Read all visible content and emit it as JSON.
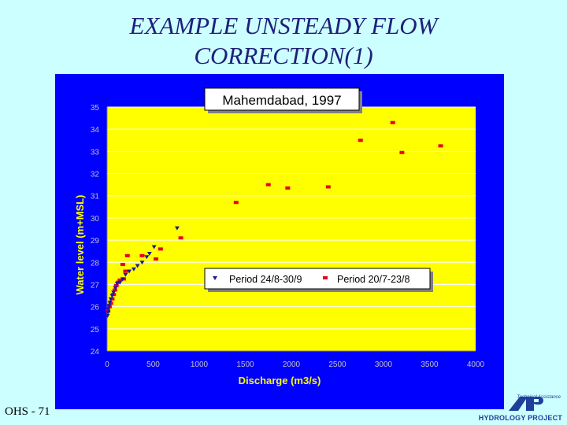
{
  "slide": {
    "title_line1": "EXAMPLE UNSTEADY FLOW",
    "title_line2": "CORRECTION(1)",
    "footer": "OHS - 71",
    "logo_text": "HYDROLOGY PROJECT",
    "logo_sub": "Technical Assistance"
  },
  "colors": {
    "plot_bg": "#ffff00",
    "frame_bg": "#0000ff",
    "grid": "#ffffff",
    "axis_text": "#c0c0c0",
    "series1": "#1a1aa0",
    "series2": "#e8001c"
  },
  "chart_data": {
    "type": "scatter",
    "title": "Mahemdabad, 1997",
    "xlabel": "Discharge (m3/s)",
    "ylabel": "Water level (m+MSL)",
    "xlim": [
      0,
      4000
    ],
    "ylim": [
      24,
      35
    ],
    "xticks": [
      "0",
      "500",
      "1000",
      "1500",
      "2000",
      "2500",
      "3000",
      "3500",
      "4000"
    ],
    "yticks": [
      "24",
      "25",
      "26",
      "27",
      "28",
      "29",
      "30",
      "31",
      "32",
      "33",
      "34",
      "35"
    ],
    "grid": true,
    "legend_position": "middle-right",
    "series": [
      {
        "name": "Period 24/8-30/9",
        "marker": "triangle-down",
        "points": [
          [
            5,
            25.6
          ],
          [
            10,
            25.75
          ],
          [
            15,
            25.9
          ],
          [
            20,
            26.05
          ],
          [
            30,
            26.2
          ],
          [
            40,
            26.35
          ],
          [
            55,
            26.5
          ],
          [
            70,
            26.65
          ],
          [
            90,
            26.85
          ],
          [
            110,
            27.05
          ],
          [
            140,
            27.1
          ],
          [
            170,
            27.25
          ],
          [
            200,
            27.45
          ],
          [
            240,
            27.6
          ],
          [
            290,
            27.7
          ],
          [
            330,
            27.85
          ],
          [
            380,
            28.0
          ],
          [
            430,
            28.25
          ],
          [
            460,
            28.4
          ],
          [
            510,
            28.7
          ],
          [
            760,
            29.55
          ]
        ]
      },
      {
        "name": "Period 20/7-23/8",
        "marker": "dash",
        "points": [
          [
            10,
            25.8
          ],
          [
            25,
            26.0
          ],
          [
            40,
            26.15
          ],
          [
            55,
            26.35
          ],
          [
            70,
            26.55
          ],
          [
            85,
            26.75
          ],
          [
            100,
            26.95
          ],
          [
            120,
            27.1
          ],
          [
            140,
            27.2
          ],
          [
            180,
            27.25
          ],
          [
            200,
            27.6
          ],
          [
            170,
            27.9
          ],
          [
            220,
            28.3
          ],
          [
            380,
            28.3
          ],
          [
            530,
            28.15
          ],
          [
            580,
            28.6
          ],
          [
            800,
            29.1
          ],
          [
            1400,
            30.7
          ],
          [
            1750,
            31.5
          ],
          [
            1960,
            31.35
          ],
          [
            2400,
            31.4
          ],
          [
            2750,
            33.5
          ],
          [
            3100,
            34.3
          ],
          [
            3200,
            32.95
          ],
          [
            3620,
            33.25
          ]
        ]
      }
    ]
  }
}
